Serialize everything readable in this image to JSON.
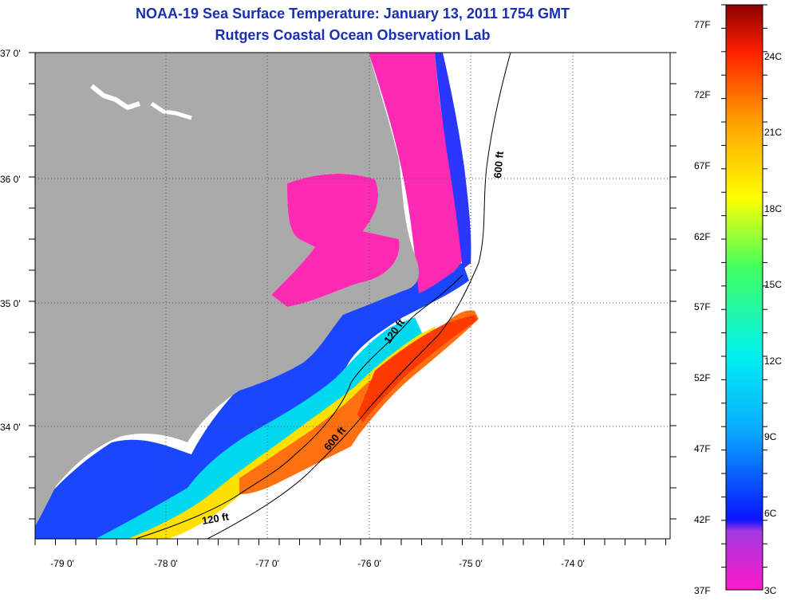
{
  "title": {
    "line1": "NOAA-19 Sea Surface Temperature:  January 13, 2011 1754 GMT",
    "line2": "Rutgers Coastal Ocean Observation Lab"
  },
  "map": {
    "lat_labels": [
      "37 0'",
      "36 0'",
      "35 0'",
      "34 0'"
    ],
    "lon_labels": [
      "-79 0'",
      "-78 0'",
      "-77 0'",
      "-76 0'",
      "-75 0'",
      "-74 0'"
    ],
    "contour_labels": [
      "600 ft",
      "120 ft",
      "600 ft",
      "120 ft"
    ],
    "colors": {
      "land": "#aaaaaa",
      "ocean_nodata": "#ffffff",
      "cold": "#ff2ab4",
      "cool": "#1540ff",
      "mild": "#00d8f0",
      "warm": "#ffe000",
      "hot": "#ff4000"
    }
  },
  "colorbar": {
    "fahrenheit_labels": [
      "77F",
      "72F",
      "67F",
      "62F",
      "57F",
      "52F",
      "47F",
      "42F",
      "37F"
    ],
    "celsius_labels": [
      "24C",
      "21C",
      "18C",
      "15C",
      "12C",
      "9C",
      "6C",
      "3C"
    ],
    "colors": [
      "#ff19c8",
      "#a238e0",
      "#0a14ff",
      "#0aa8ff",
      "#00f0f0",
      "#40ff60",
      "#ffff00",
      "#ffa000",
      "#ff2000",
      "#8c0000"
    ]
  }
}
